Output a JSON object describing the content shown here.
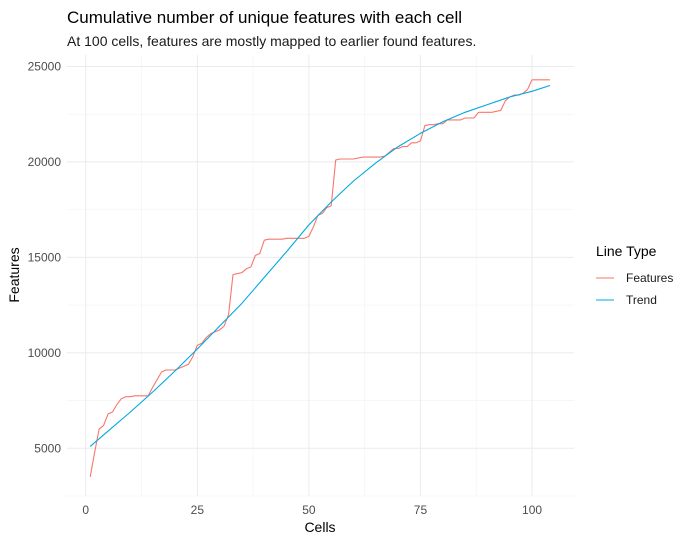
{
  "chart_data": {
    "type": "line",
    "title": "Cumulative number of unique features with each cell",
    "subtitle": "At 100 cells, features are mostly mapped to earlier found features.",
    "xlabel": "Cells",
    "ylabel": "Features",
    "xlim": [
      -4.2,
      109.4
    ],
    "ylim": [
      2500,
      25600
    ],
    "x_ticks": [
      0,
      25,
      50,
      75,
      100
    ],
    "y_ticks": [
      5000,
      10000,
      15000,
      20000,
      25000
    ],
    "x_tick_labels": [
      "0",
      "25",
      "50",
      "75",
      "100"
    ],
    "y_tick_labels": [
      "5000",
      "10000",
      "15000",
      "20000",
      "25000"
    ],
    "grid": true,
    "legend": {
      "title": "Line Type",
      "placement": "right"
    },
    "series": [
      {
        "name": "Features",
        "color": "#F8766D",
        "x": [
          1,
          2,
          3,
          4,
          5,
          6,
          7,
          8,
          9,
          10,
          11,
          12,
          13,
          14,
          15,
          16,
          17,
          18,
          19,
          20,
          21,
          22,
          23,
          24,
          25,
          26,
          27,
          28,
          29,
          30,
          31,
          32,
          33,
          34,
          35,
          36,
          37,
          38,
          39,
          40,
          41,
          42,
          43,
          44,
          45,
          46,
          47,
          48,
          49,
          50,
          51,
          52,
          53,
          54,
          55,
          56,
          57,
          58,
          59,
          60,
          61,
          62,
          63,
          64,
          65,
          66,
          67,
          68,
          69,
          70,
          71,
          72,
          73,
          74,
          75,
          76,
          77,
          78,
          79,
          80,
          81,
          82,
          83,
          84,
          85,
          86,
          87,
          88,
          89,
          90,
          91,
          92,
          93,
          94,
          95,
          96,
          97,
          98,
          99,
          100,
          101,
          102,
          103,
          104
        ],
        "values": [
          3500,
          4800,
          6000,
          6200,
          6800,
          6900,
          7300,
          7600,
          7700,
          7700,
          7750,
          7750,
          7750,
          7750,
          8200,
          8600,
          9000,
          9100,
          9100,
          9100,
          9200,
          9300,
          9400,
          9800,
          10400,
          10500,
          10800,
          11000,
          11100,
          11200,
          11400,
          12000,
          14100,
          14150,
          14200,
          14400,
          14500,
          15100,
          15200,
          15900,
          15950,
          15950,
          15950,
          15950,
          16000,
          16000,
          16000,
          16000,
          16000,
          16100,
          16600,
          17200,
          17300,
          17600,
          17700,
          20100,
          20150,
          20150,
          20150,
          20150,
          20200,
          20250,
          20250,
          20250,
          20250,
          20250,
          20300,
          20500,
          20700,
          20700,
          20800,
          20800,
          21000,
          21000,
          21100,
          21900,
          21950,
          21950,
          22000,
          22000,
          22200,
          22200,
          22200,
          22200,
          22300,
          22300,
          22300,
          22600,
          22600,
          22600,
          22600,
          22650,
          22700,
          23200,
          23400,
          23500,
          23500,
          23600,
          23800,
          24300,
          24300,
          24300,
          24300,
          24300
        ]
      },
      {
        "name": "Trend",
        "color": "#00A9E0",
        "x": [
          1,
          5,
          10,
          15,
          20,
          25,
          30,
          35,
          40,
          45,
          50,
          55,
          60,
          65,
          70,
          75,
          80,
          85,
          90,
          95,
          100,
          104
        ],
        "values": [
          5100,
          5900,
          6900,
          7950,
          9050,
          10200,
          11400,
          12600,
          13950,
          15300,
          16700,
          17900,
          19000,
          19950,
          20800,
          21500,
          22100,
          22600,
          23000,
          23400,
          23700,
          24000
        ]
      }
    ]
  }
}
